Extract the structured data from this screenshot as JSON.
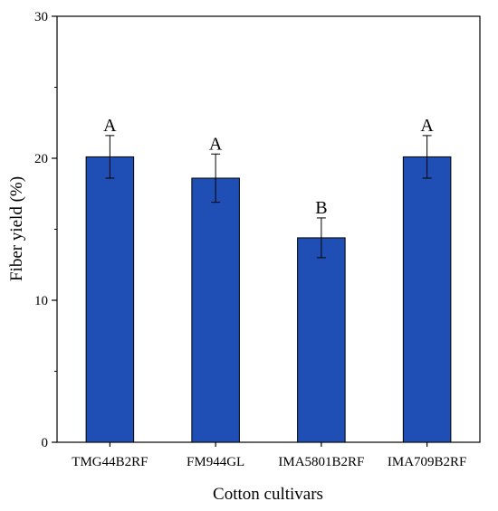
{
  "chart_data": {
    "type": "bar",
    "title": "",
    "xlabel": "Cotton cultivars",
    "ylabel": "Fiber yield (%)",
    "ylim": [
      0,
      30
    ],
    "yticks": [
      "0",
      "10",
      "20",
      "30"
    ],
    "categories": [
      "TMG44B2RF",
      "FM944GL",
      "IMA5801B2RF",
      "IMA709B2RF"
    ],
    "values": [
      20.1,
      18.6,
      14.4,
      20.1
    ],
    "errors": [
      1.5,
      1.7,
      1.4,
      1.5
    ],
    "significance_labels": [
      "A",
      "A",
      "B",
      "A"
    ],
    "bar_color": "#1f4fb4",
    "grid": false,
    "legend": "none"
  }
}
